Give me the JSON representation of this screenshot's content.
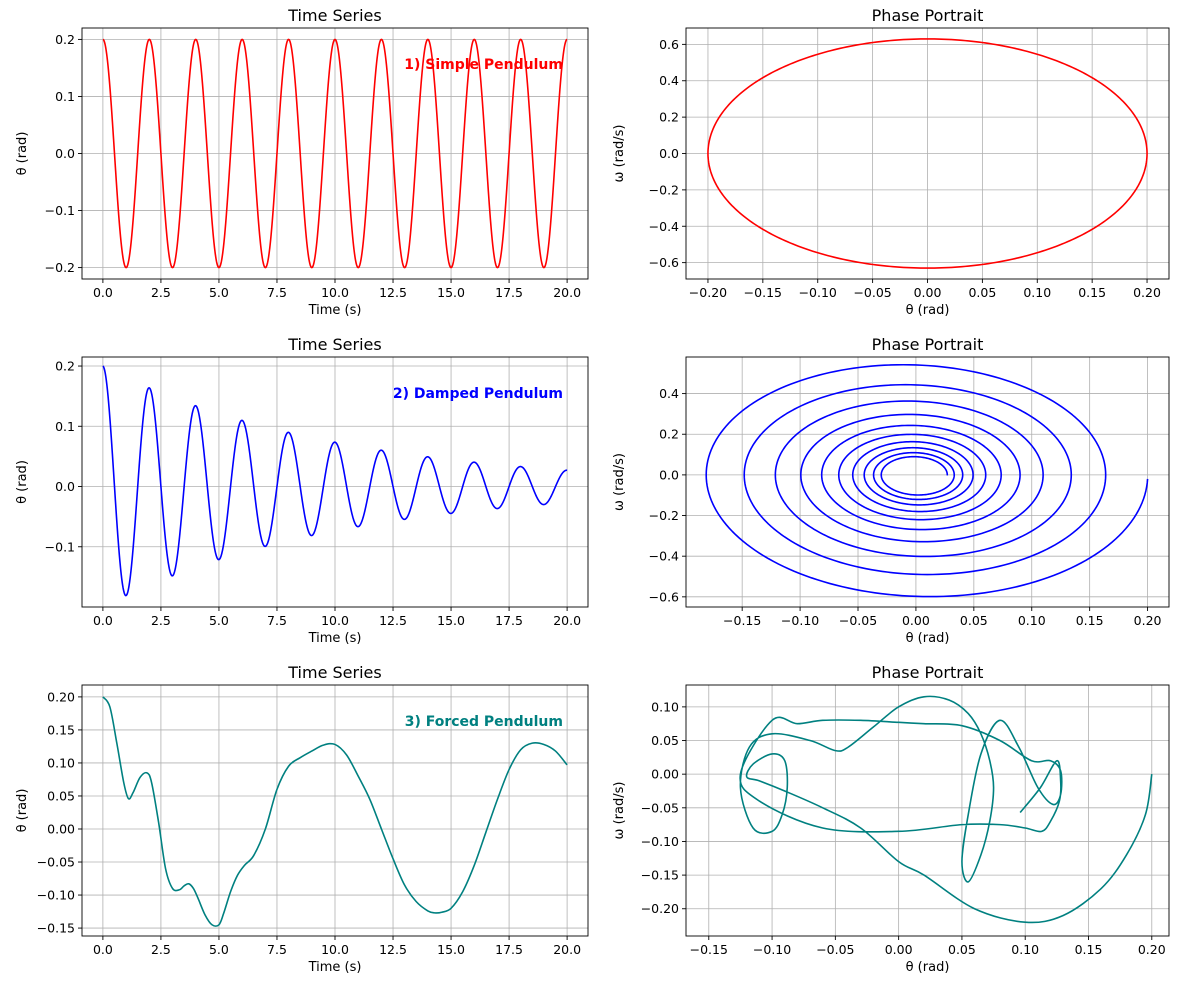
{
  "chart_data": [
    {
      "type": "line",
      "title": "Time Series",
      "xlabel": "Time (s)",
      "ylabel": "θ (rad)",
      "xlim": [
        -0.9,
        20.9
      ],
      "ylim": [
        -0.22,
        0.22
      ],
      "xticks": [
        0,
        2.5,
        5,
        7.5,
        10,
        12.5,
        15,
        17.5,
        20
      ],
      "xtick_labels": [
        "0.0",
        "2.5",
        "5.0",
        "7.5",
        "10.0",
        "12.5",
        "15.0",
        "17.5",
        "20.0"
      ],
      "yticks": [
        -0.2,
        -0.1,
        0.0,
        0.1,
        0.2
      ],
      "ytick_labels": [
        "−0.2",
        "−0.1",
        "0.0",
        "0.1",
        "0.2"
      ],
      "grid": true,
      "annotation": "1) Simple Pendulum",
      "color": "#ff0000",
      "series": [
        {
          "model": "cos",
          "amplitude": 0.2,
          "period": 2.0,
          "t_range": [
            0,
            20
          ]
        }
      ]
    },
    {
      "type": "line",
      "title": "Phase Portrait",
      "xlabel": "θ (rad)",
      "ylabel": "ω (rad/s)",
      "xlim": [
        -0.22,
        0.22
      ],
      "ylim": [
        -0.69,
        0.69
      ],
      "xticks": [
        -0.2,
        -0.15,
        -0.1,
        -0.05,
        0,
        0.05,
        0.1,
        0.15,
        0.2
      ],
      "xtick_labels": [
        "−0.20",
        "−0.15",
        "−0.10",
        "−0.05",
        "0.00",
        "0.05",
        "0.10",
        "0.15",
        "0.20"
      ],
      "yticks": [
        -0.6,
        -0.4,
        -0.2,
        0,
        0.2,
        0.4,
        0.6
      ],
      "ytick_labels": [
        "−0.6",
        "−0.4",
        "−0.2",
        "0.0",
        "0.2",
        "0.4",
        "0.6"
      ],
      "grid": true,
      "color": "#ff0000",
      "series": [
        {
          "model": "ellipse",
          "theta_amplitude": 0.2,
          "omega_amplitude": 0.63
        }
      ]
    },
    {
      "type": "line",
      "title": "Time Series",
      "xlabel": "Time (s)",
      "ylabel": "θ (rad)",
      "xlim": [
        -0.9,
        20.9
      ],
      "ylim": [
        -0.2,
        0.215
      ],
      "xticks": [
        0,
        2.5,
        5,
        7.5,
        10,
        12.5,
        15,
        17.5,
        20
      ],
      "xtick_labels": [
        "0.0",
        "2.5",
        "5.0",
        "7.5",
        "10.0",
        "12.5",
        "15.0",
        "17.5",
        "20.0"
      ],
      "yticks": [
        -0.1,
        0.0,
        0.1,
        0.2
      ],
      "ytick_labels": [
        "−0.1",
        "0.0",
        "0.1",
        "0.2"
      ],
      "grid": true,
      "annotation": "2) Damped Pendulum",
      "color": "#0000ff",
      "series": [
        {
          "model": "damped",
          "amplitude": 0.2,
          "period": 2.0,
          "decay_rate": 0.1,
          "t_range": [
            0,
            20
          ]
        }
      ]
    },
    {
      "type": "line",
      "title": "Phase Portrait",
      "xlabel": "θ (rad)",
      "ylabel": "ω (rad/s)",
      "xlim": [
        -0.1985,
        0.2185
      ],
      "ylim": [
        -0.65,
        0.58
      ],
      "xticks": [
        -0.15,
        -0.1,
        -0.05,
        0,
        0.05,
        0.1,
        0.15,
        0.2
      ],
      "xtick_labels": [
        "−0.15",
        "−0.10",
        "−0.05",
        "0.00",
        "0.05",
        "0.10",
        "0.15",
        "0.20"
      ],
      "yticks": [
        -0.6,
        -0.4,
        -0.2,
        0,
        0.2,
        0.4
      ],
      "ytick_labels": [
        "−0.6",
        "−0.4",
        "−0.2",
        "0.0",
        "0.2",
        "0.4"
      ],
      "grid": true,
      "color": "#0000ff",
      "series": [
        {
          "model": "damped_phase",
          "amplitude": 0.2,
          "period": 2.0,
          "decay_rate": 0.1,
          "t_range": [
            0,
            20
          ]
        }
      ]
    },
    {
      "type": "line",
      "title": "Time Series",
      "xlabel": "Time (s)",
      "ylabel": "θ (rad)",
      "xlim": [
        -0.9,
        20.9
      ],
      "ylim": [
        -0.162,
        0.218
      ],
      "xticks": [
        0,
        2.5,
        5,
        7.5,
        10,
        12.5,
        15,
        17.5,
        20
      ],
      "xtick_labels": [
        "0.0",
        "2.5",
        "5.0",
        "7.5",
        "10.0",
        "12.5",
        "15.0",
        "17.5",
        "20.0"
      ],
      "yticks": [
        -0.15,
        -0.1,
        -0.05,
        0,
        0.05,
        0.1,
        0.15,
        0.2
      ],
      "ytick_labels": [
        "−0.15",
        "−0.10",
        "−0.05",
        "0.00",
        "0.05",
        "0.10",
        "0.15",
        "0.20"
      ],
      "grid": true,
      "annotation": "3) Forced Pendulum",
      "color": "#008080",
      "series": [
        {
          "x": [
            0,
            0.3,
            0.6,
            0.9,
            1.1,
            1.3,
            1.6,
            1.9,
            2.1,
            2.4,
            2.7,
            3.0,
            3.3,
            3.5,
            3.7,
            3.9,
            4.1,
            4.4,
            4.7,
            5.0,
            5.2,
            5.5,
            5.8,
            6.1,
            6.5,
            7.0,
            7.5,
            8.0,
            8.5,
            9.0,
            9.5,
            10.0,
            10.5,
            11.0,
            11.5,
            12.0,
            12.5,
            13.0,
            13.5,
            14.0,
            14.3,
            14.6,
            15.0,
            15.5,
            16.0,
            16.5,
            17.0,
            17.5,
            18.0,
            18.5,
            19.0,
            19.5,
            20.0
          ],
          "y": [
            0.2,
            0.185,
            0.13,
            0.07,
            0.046,
            0.055,
            0.078,
            0.085,
            0.07,
            0.01,
            -0.06,
            -0.09,
            -0.092,
            -0.086,
            -0.083,
            -0.09,
            -0.105,
            -0.13,
            -0.145,
            -0.145,
            -0.128,
            -0.095,
            -0.07,
            -0.055,
            -0.04,
            0.0,
            0.06,
            0.095,
            0.108,
            0.118,
            0.127,
            0.128,
            0.112,
            0.08,
            0.045,
            0.0,
            -0.045,
            -0.085,
            -0.11,
            -0.124,
            -0.127,
            -0.126,
            -0.12,
            -0.095,
            -0.055,
            -0.005,
            0.045,
            0.09,
            0.12,
            0.13,
            0.128,
            0.118,
            0.097
          ]
        }
      ]
    },
    {
      "type": "line",
      "title": "Phase Portrait",
      "xlabel": "θ (rad)",
      "ylabel": "ω (rad/s)",
      "xlim": [
        -0.168,
        0.2136
      ],
      "ylim": [
        -0.2405,
        0.1325
      ],
      "xticks": [
        -0.15,
        -0.1,
        -0.05,
        0,
        0.05,
        0.1,
        0.15,
        0.2
      ],
      "xtick_labels": [
        "−0.15",
        "−0.10",
        "−0.05",
        "0.00",
        "0.05",
        "0.10",
        "0.15",
        "0.20"
      ],
      "yticks": [
        -0.2,
        -0.15,
        -0.1,
        -0.05,
        0,
        0.05,
        0.1
      ],
      "ytick_labels": [
        "−0.20",
        "−0.15",
        "−0.10",
        "−0.05",
        "0.00",
        "0.05",
        "0.10"
      ],
      "grid": true,
      "color": "#008080",
      "series": [
        {
          "x": [
            0.2,
            0.195,
            0.18,
            0.16,
            0.13,
            0.1,
            0.06,
            0.02,
            0.0,
            -0.03,
            -0.06,
            -0.09,
            -0.11,
            -0.12,
            -0.115,
            -0.1,
            -0.09,
            -0.088,
            -0.092,
            -0.1,
            -0.115,
            -0.125,
            -0.118,
            -0.1,
            -0.07,
            -0.05,
            -0.04,
            -0.02,
            0.0,
            0.02,
            0.04,
            0.055,
            0.065,
            0.072,
            0.075,
            0.072,
            0.065,
            0.055,
            0.05,
            0.055,
            0.065,
            0.08,
            0.095,
            0.11,
            0.122,
            0.128,
            0.128,
            0.12,
            0.105,
            0.08,
            0.05,
            0.02,
            0.0,
            -0.03,
            -0.06,
            -0.08,
            -0.1,
            -0.125,
            -0.11,
            -0.06,
            0.0,
            0.05,
            0.08,
            0.1,
            0.113,
            0.12,
            0.127,
            0.128,
            0.125,
            0.112,
            0.096
          ],
          "y": [
            0.0,
            -0.06,
            -0.12,
            -0.17,
            -0.21,
            -0.22,
            -0.2,
            -0.15,
            -0.13,
            -0.08,
            -0.05,
            -0.025,
            -0.01,
            -0.004,
            0.015,
            0.03,
            0.02,
            -0.02,
            -0.06,
            -0.085,
            -0.08,
            -0.02,
            0.04,
            0.06,
            0.05,
            0.035,
            0.04,
            0.07,
            0.1,
            0.115,
            0.11,
            0.09,
            0.06,
            0.02,
            -0.02,
            -0.07,
            -0.12,
            -0.16,
            -0.13,
            -0.06,
            0.03,
            0.08,
            0.04,
            -0.02,
            -0.045,
            -0.03,
            0.005,
            0.02,
            0.02,
            0.05,
            0.072,
            0.075,
            0.077,
            0.08,
            0.08,
            0.075,
            0.08,
            0.0,
            -0.04,
            -0.08,
            -0.085,
            -0.075,
            -0.075,
            -0.08,
            -0.085,
            -0.07,
            -0.04,
            -0.01,
            0.02,
            -0.02,
            -0.057
          ]
        }
      ]
    }
  ]
}
